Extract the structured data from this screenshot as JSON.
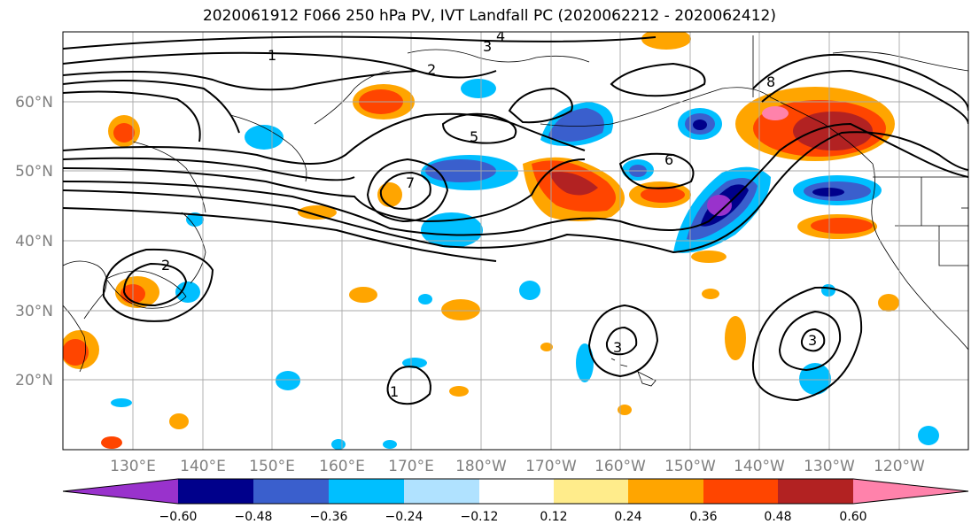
{
  "title": "2020061912 F066 250 hPa PV, IVT Landfall PC (2020062212 - 2020062412)",
  "map": {
    "lat_labels": [
      "60°N",
      "50°N",
      "40°N",
      "30°N",
      "20°N"
    ],
    "lon_labels": [
      "130°E",
      "140°E",
      "150°E",
      "160°E",
      "170°E",
      "180°W",
      "170°W",
      "160°W",
      "150°W",
      "140°W",
      "130°W",
      "120°W"
    ],
    "contour_labels": [
      "1",
      "2",
      "3",
      "4",
      "5",
      "6",
      "7",
      "8"
    ]
  },
  "colorbar": {
    "ticks": [
      "−0.60",
      "−0.48",
      "−0.36",
      "−0.24",
      "−0.12",
      "0.12",
      "0.24",
      "0.36",
      "0.48",
      "0.60"
    ],
    "colors": [
      "#9932cc",
      "#00008b",
      "#3a5fcd",
      "#00bfff",
      "#b0e2ff",
      "#ffffff",
      "#ffec8b",
      "#ffa500",
      "#ff4500",
      "#b22222",
      "#ff82ab"
    ]
  }
}
